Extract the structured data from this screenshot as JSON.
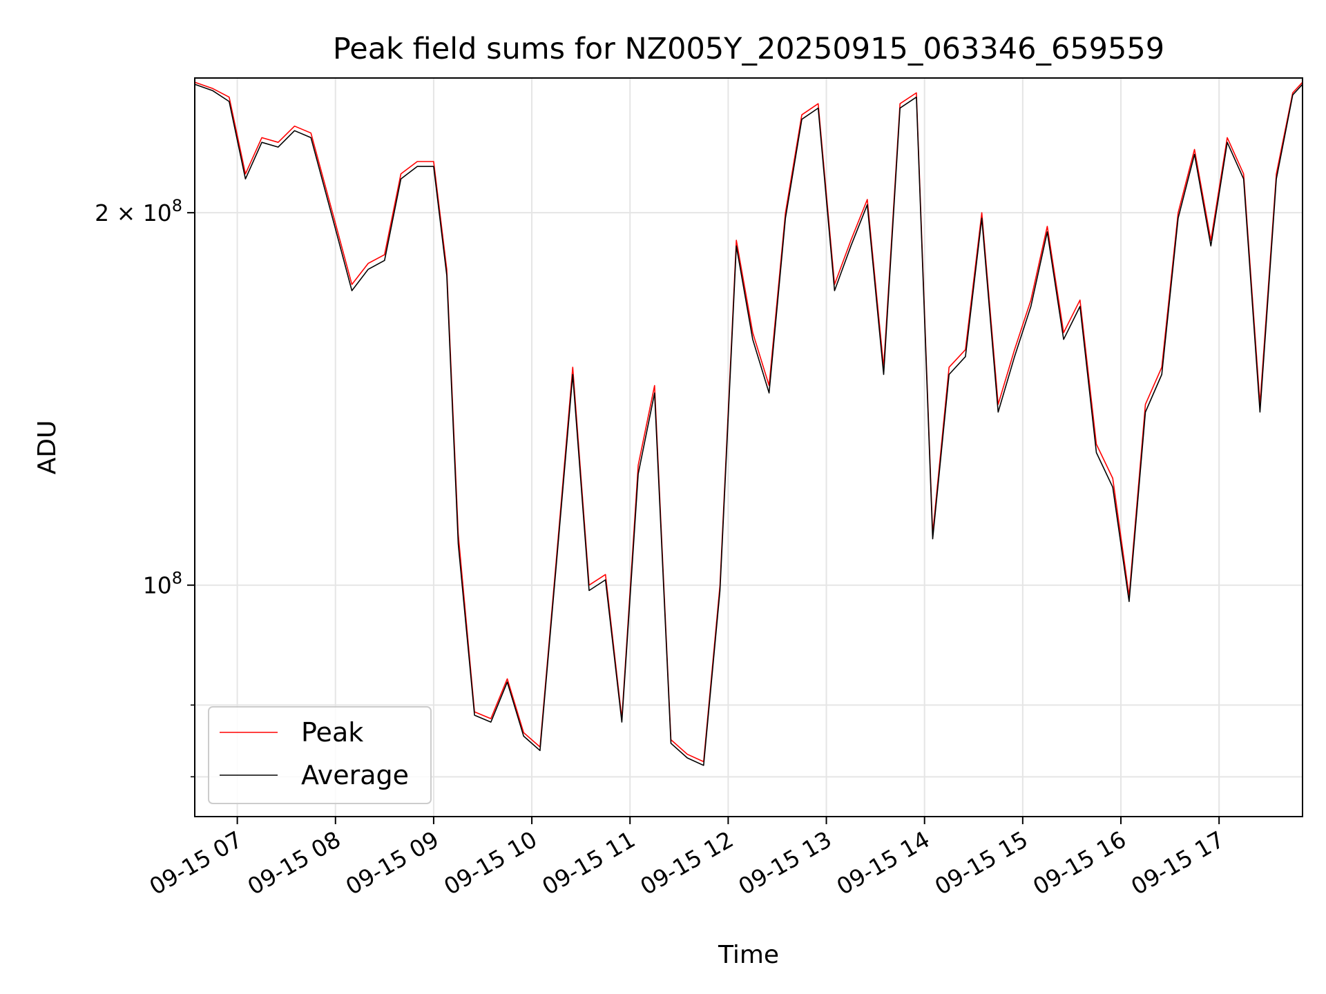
{
  "chart_data": {
    "type": "line",
    "title": "Peak field sums for NZ005Y_20250915_063346_659559",
    "xlabel": "Time",
    "ylabel": "ADU",
    "y_scale": "log",
    "ylim": [
      65000000,
      257000000
    ],
    "xlim": [
      "2025-09-15 06:34",
      "2025-09-15 17:51"
    ],
    "x_ticks": [
      "09-15 07",
      "09-15 08",
      "09-15 09",
      "09-15 10",
      "09-15 11",
      "09-15 12",
      "09-15 13",
      "09-15 14",
      "09-15 15",
      "09-15 16",
      "09-15 17"
    ],
    "y_ticks": [
      {
        "value": 100000000,
        "base": "10",
        "exp": "8"
      },
      {
        "value": 200000000,
        "base": "2 × 10",
        "exp": "8"
      }
    ],
    "y_minor_ticks": [
      70000000,
      80000000
    ],
    "grid": true,
    "legend_position": "lower-left",
    "colors": {
      "peak": "#ff0000",
      "average": "#000000"
    },
    "x": [
      "2025-09-15 06:34",
      "2025-09-15 06:45",
      "2025-09-15 06:55",
      "2025-09-15 07:05",
      "2025-09-15 07:15",
      "2025-09-15 07:25",
      "2025-09-15 07:35",
      "2025-09-15 07:45",
      "2025-09-15 08:00",
      "2025-09-15 08:10",
      "2025-09-15 08:20",
      "2025-09-15 08:30",
      "2025-09-15 08:40",
      "2025-09-15 08:50",
      "2025-09-15 09:00",
      "2025-09-15 09:08",
      "2025-09-15 09:15",
      "2025-09-15 09:25",
      "2025-09-15 09:35",
      "2025-09-15 09:45",
      "2025-09-15 09:55",
      "2025-09-15 10:05",
      "2025-09-15 10:15",
      "2025-09-15 10:25",
      "2025-09-15 10:35",
      "2025-09-15 10:45",
      "2025-09-15 10:55",
      "2025-09-15 11:05",
      "2025-09-15 11:15",
      "2025-09-15 11:25",
      "2025-09-15 11:35",
      "2025-09-15 11:45",
      "2025-09-15 11:55",
      "2025-09-15 12:05",
      "2025-09-15 12:15",
      "2025-09-15 12:25",
      "2025-09-15 12:35",
      "2025-09-15 12:45",
      "2025-09-15 12:55",
      "2025-09-15 13:05",
      "2025-09-15 13:15",
      "2025-09-15 13:25",
      "2025-09-15 13:35",
      "2025-09-15 13:45",
      "2025-09-15 13:55",
      "2025-09-15 14:05",
      "2025-09-15 14:15",
      "2025-09-15 14:25",
      "2025-09-15 14:35",
      "2025-09-15 14:45",
      "2025-09-15 14:55",
      "2025-09-15 15:05",
      "2025-09-15 15:15",
      "2025-09-15 15:25",
      "2025-09-15 15:35",
      "2025-09-15 15:45",
      "2025-09-15 15:55",
      "2025-09-15 16:05",
      "2025-09-15 16:15",
      "2025-09-15 16:25",
      "2025-09-15 16:35",
      "2025-09-15 16:45",
      "2025-09-15 16:55",
      "2025-09-15 17:05",
      "2025-09-15 17:15",
      "2025-09-15 17:25",
      "2025-09-15 17:35",
      "2025-09-15 17:45",
      "2025-09-15 17:51"
    ],
    "series": [
      {
        "name": "Peak",
        "values": [
          255000000,
          252000000,
          248000000,
          215000000,
          230000000,
          228000000,
          235000000,
          232000000,
          196000000,
          175000000,
          182000000,
          185000000,
          215000000,
          220000000,
          220000000,
          180000000,
          110000000,
          79000000,
          78000000,
          84000000,
          76000000,
          74000000,
          105000000,
          150000000,
          100000000,
          102000000,
          78000000,
          125000000,
          145000000,
          75000000,
          73000000,
          72000000,
          100000000,
          190000000,
          160000000,
          145000000,
          200000000,
          240000000,
          245000000,
          175000000,
          190000000,
          205000000,
          150000000,
          245000000,
          250000000,
          110000000,
          150000000,
          155000000,
          200000000,
          140000000,
          155000000,
          170000000,
          195000000,
          160000000,
          170000000,
          130000000,
          122000000,
          98000000,
          140000000,
          150000000,
          200000000,
          225000000,
          190000000,
          230000000,
          215000000,
          140000000,
          215000000,
          250000000,
          255000000
        ]
      },
      {
        "name": "Average",
        "values": [
          254000000,
          251000000,
          246000000,
          213000000,
          228000000,
          226000000,
          233000000,
          230000000,
          194000000,
          173000000,
          180000000,
          183000000,
          213000000,
          218000000,
          218000000,
          178000000,
          108000000,
          78500000,
          77500000,
          83500000,
          75500000,
          73500000,
          104000000,
          148000000,
          99000000,
          101000000,
          77500000,
          123000000,
          143000000,
          74500000,
          72500000,
          71500000,
          99000000,
          188000000,
          158000000,
          143000000,
          198000000,
          238000000,
          243000000,
          173000000,
          188000000,
          203000000,
          148000000,
          243000000,
          248000000,
          109000000,
          148000000,
          153000000,
          198000000,
          138000000,
          153000000,
          168000000,
          193000000,
          158000000,
          168000000,
          128000000,
          120000000,
          97000000,
          138000000,
          148000000,
          198000000,
          223000000,
          188000000,
          228000000,
          213000000,
          138000000,
          213000000,
          249000000,
          254000000
        ]
      }
    ]
  }
}
